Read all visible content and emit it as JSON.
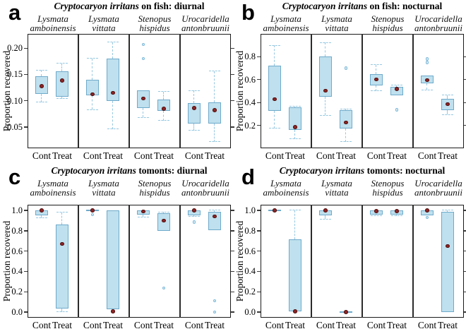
{
  "figure": {
    "background": "#ffffff",
    "colors": {
      "box_fill": "#bfe0ee",
      "box_border": "#6eaacb",
      "whisker": "#96c8e1",
      "mean_point": "#8d2424",
      "frame": "#1a1a1a"
    }
  },
  "chart_data": {
    "type": "boxplot-grid",
    "ylabel": "Proportion recovered",
    "group_labels": [
      "Cont",
      "Treat"
    ],
    "species": [
      {
        "line1": "Lysmata",
        "line2": "amboinensis"
      },
      {
        "line1": "Lysmata",
        "line2": "vittata"
      },
      {
        "line1": "Stenopus",
        "line2": "hispidus"
      },
      {
        "line1": "Urocaridella",
        "line2": "antonbruunii"
      }
    ],
    "panels": [
      {
        "id": "a",
        "letter": "a",
        "title_italic": "Cryptocaryon irritans",
        "title_rest": " on fish: diurnal",
        "ylim": [
          0.0095,
          0.227
        ],
        "yticks": [
          {
            "v": 0.05,
            "label": "0.05"
          },
          {
            "v": 0.1,
            "label": "0.10"
          },
          {
            "v": 0.15,
            "label": "0.15"
          },
          {
            "v": 0.2,
            "label": "0.20"
          }
        ],
        "boxes": [
          {
            "species": "Lysmata amboinensis",
            "group": "Cont",
            "q1": 0.113,
            "q3": 0.146,
            "mean": 0.128,
            "whisker_low": 0.097,
            "whisker_high": 0.158,
            "outliers": []
          },
          {
            "species": "Lysmata amboinensis",
            "group": "Treat",
            "q1": 0.108,
            "q3": 0.156,
            "mean": 0.138,
            "whisker_low": 0.104,
            "whisker_high": 0.171,
            "outliers": []
          },
          {
            "species": "Lysmata vittata",
            "group": "Cont",
            "q1": 0.11,
            "q3": 0.14,
            "mean": 0.112,
            "whisker_low": 0.083,
            "whisker_high": 0.18,
            "outliers": []
          },
          {
            "species": "Lysmata vittata",
            "group": "Treat",
            "q1": 0.099,
            "q3": 0.18,
            "mean": 0.115,
            "whisker_low": 0.046,
            "whisker_high": 0.211,
            "outliers": []
          },
          {
            "species": "Stenopus hispidus",
            "group": "Cont",
            "q1": 0.086,
            "q3": 0.12,
            "mean": 0.104,
            "whisker_low": 0.068,
            "whisker_high": null,
            "outliers": [
              0.207,
              0.18
            ]
          },
          {
            "species": "Stenopus hispidus",
            "group": "Treat",
            "q1": 0.08,
            "q3": 0.102,
            "mean": 0.085,
            "whisker_low": 0.062,
            "whisker_high": 0.117,
            "outliers": []
          },
          {
            "species": "Urocaridella antonbruunii",
            "group": "Cont",
            "q1": 0.057,
            "q3": 0.096,
            "mean": 0.086,
            "whisker_low": 0.043,
            "whisker_high": 0.119,
            "outliers": []
          },
          {
            "species": "Urocaridella antonbruunii",
            "group": "Treat",
            "q1": 0.057,
            "q3": 0.097,
            "mean": 0.082,
            "whisker_low": 0.022,
            "whisker_high": 0.156,
            "outliers": []
          }
        ]
      },
      {
        "id": "b",
        "letter": "b",
        "title_italic": "Cryptocaryon irritans",
        "title_rest": " on fish: nocturnal",
        "ylim": [
          0.0,
          1.0
        ],
        "yticks": [
          {
            "v": 0.2,
            "label": "0.2"
          },
          {
            "v": 0.4,
            "label": "0.4"
          },
          {
            "v": 0.6,
            "label": "0.6"
          },
          {
            "v": 0.8,
            "label": "0.8"
          }
        ],
        "boxes": [
          {
            "species": "Lysmata amboinensis",
            "group": "Cont",
            "q1": 0.33,
            "q3": 0.72,
            "mean": 0.43,
            "whisker_low": 0.175,
            "whisker_high": 0.9,
            "outliers": []
          },
          {
            "species": "Lysmata amboinensis",
            "group": "Treat",
            "q1": 0.163,
            "q3": 0.355,
            "mean": 0.185,
            "whisker_low": 0.082,
            "whisker_high": 0.367,
            "outliers": []
          },
          {
            "species": "Lysmata vittata",
            "group": "Cont",
            "q1": 0.45,
            "q3": 0.8,
            "mean": 0.503,
            "whisker_low": 0.287,
            "whisker_high": 0.925,
            "outliers": []
          },
          {
            "species": "Lysmata vittata",
            "group": "Treat",
            "q1": 0.175,
            "q3": 0.336,
            "mean": 0.225,
            "whisker_low": 0.058,
            "whisker_high": 0.345,
            "outliers": [
              0.7
            ]
          },
          {
            "species": "Stenopus hispidus",
            "group": "Cont",
            "q1": 0.55,
            "q3": 0.65,
            "mean": 0.603,
            "whisker_low": 0.503,
            "whisker_high": 0.73,
            "outliers": []
          },
          {
            "species": "Stenopus hispidus",
            "group": "Treat",
            "q1": 0.466,
            "q3": 0.54,
            "mean": 0.52,
            "whisker_low": null,
            "whisker_high": 0.55,
            "outliers": [
              0.335
            ]
          },
          {
            "species": "Urocaridella antonbruunii",
            "group": "Cont",
            "q1": 0.565,
            "q3": 0.635,
            "mean": 0.595,
            "whisker_low": 0.51,
            "whisker_high": null,
            "outliers": [
              0.78,
              0.75
            ]
          },
          {
            "species": "Urocaridella antonbruunii",
            "group": "Treat",
            "q1": 0.335,
            "q3": 0.435,
            "mean": 0.385,
            "whisker_low": 0.295,
            "whisker_high": 0.465,
            "outliers": []
          }
        ]
      },
      {
        "id": "c",
        "letter": "c",
        "title_italic": "Cryptocaryon irritans",
        "title_rest": " tomonts: diurnal",
        "ylim": [
          -0.056,
          1.056
        ],
        "yticks": [
          {
            "v": 0.0,
            "label": "0.0"
          },
          {
            "v": 0.2,
            "label": "0.2"
          },
          {
            "v": 0.4,
            "label": "0.4"
          },
          {
            "v": 0.6,
            "label": "0.6"
          },
          {
            "v": 0.8,
            "label": "0.8"
          },
          {
            "v": 1.0,
            "label": "1.0"
          }
        ],
        "boxes": [
          {
            "species": "Lysmata amboinensis",
            "group": "Cont",
            "q1": 0.95,
            "q3": 1.0,
            "mean": 1.0,
            "whisker_low": 0.925,
            "whisker_high": null,
            "outliers": []
          },
          {
            "species": "Lysmata amboinensis",
            "group": "Treat",
            "q1": 0.035,
            "q3": 0.86,
            "mean": 0.67,
            "whisker_low": 0.0,
            "whisker_high": 0.98,
            "outliers": []
          },
          {
            "species": "Lysmata vittata",
            "group": "Cont",
            "q1": 1.0,
            "q3": 1.0,
            "mean": 1.0,
            "whisker_low": null,
            "whisker_high": null,
            "outliers": [
              0.96
            ]
          },
          {
            "species": "Lysmata vittata",
            "group": "Treat",
            "q1": 0.03,
            "q3": 1.0,
            "mean": 0.005,
            "whisker_low": null,
            "whisker_high": null,
            "outliers": []
          },
          {
            "species": "Stenopus hispidus",
            "group": "Cont",
            "q1": 0.96,
            "q3": 1.0,
            "mean": 0.99,
            "whisker_low": 0.937,
            "whisker_high": null,
            "outliers": []
          },
          {
            "species": "Stenopus hispidus",
            "group": "Treat",
            "q1": 0.8,
            "q3": 0.97,
            "mean": 0.9,
            "whisker_low": null,
            "whisker_high": 0.985,
            "outliers": [
              0.235
            ]
          },
          {
            "species": "Urocaridella antonbruunii",
            "group": "Cont",
            "q1": 0.95,
            "q3": 1.0,
            "mean": 1.0,
            "whisker_low": 0.94,
            "whisker_high": null,
            "outliers": [
              0.885
            ]
          },
          {
            "species": "Urocaridella antonbruunii",
            "group": "Treat",
            "q1": 0.805,
            "q3": 0.985,
            "mean": 0.94,
            "whisker_low": null,
            "whisker_high": 1.0,
            "outliers": [
              0.11,
              0.0
            ]
          }
        ]
      },
      {
        "id": "d",
        "letter": "d",
        "title_italic": "Cryptocaryon irritans",
        "title_rest": " tomonts: nocturnal",
        "ylim": [
          -0.056,
          1.056
        ],
        "yticks": [
          {
            "v": 0.0,
            "label": "0.0"
          },
          {
            "v": 0.2,
            "label": "0.2"
          },
          {
            "v": 0.4,
            "label": "0.4"
          },
          {
            "v": 0.6,
            "label": "0.6"
          },
          {
            "v": 0.8,
            "label": "0.8"
          },
          {
            "v": 1.0,
            "label": "1.0"
          }
        ],
        "boxes": [
          {
            "species": "Lysmata amboinensis",
            "group": "Cont",
            "q1": 1.0,
            "q3": 1.0,
            "mean": 1.0,
            "whisker_low": null,
            "whisker_high": null,
            "outliers": []
          },
          {
            "species": "Lysmata amboinensis",
            "group": "Treat",
            "q1": 0.007,
            "q3": 0.715,
            "mean": 0.005,
            "whisker_low": null,
            "whisker_high": 1.0,
            "outliers": []
          },
          {
            "species": "Lysmata vittata",
            "group": "Cont",
            "q1": 0.95,
            "q3": 1.0,
            "mean": 1.0,
            "whisker_low": 0.915,
            "whisker_high": null,
            "outliers": []
          },
          {
            "species": "Lysmata vittata",
            "group": "Treat",
            "q1": 0.0,
            "q3": 0.0,
            "mean": 0.0,
            "whisker_low": null,
            "whisker_high": null,
            "outliers": []
          },
          {
            "species": "Stenopus hispidus",
            "group": "Cont",
            "q1": 0.96,
            "q3": 1.0,
            "mean": 0.995,
            "whisker_low": 0.95,
            "whisker_high": null,
            "outliers": []
          },
          {
            "species": "Stenopus hispidus",
            "group": "Treat",
            "q1": 0.96,
            "q3": 1.0,
            "mean": 0.995,
            "whisker_low": 0.945,
            "whisker_high": null,
            "outliers": []
          },
          {
            "species": "Urocaridella antonbruunii",
            "group": "Cont",
            "q1": 0.955,
            "q3": 1.0,
            "mean": 1.0,
            "whisker_low": null,
            "whisker_high": null,
            "outliers": [
              0.93
            ]
          },
          {
            "species": "Urocaridella antonbruunii",
            "group": "Treat",
            "q1": 0.0,
            "q3": 0.985,
            "mean": 0.65,
            "whisker_low": null,
            "whisker_high": 1.0,
            "outliers": []
          }
        ]
      }
    ]
  }
}
